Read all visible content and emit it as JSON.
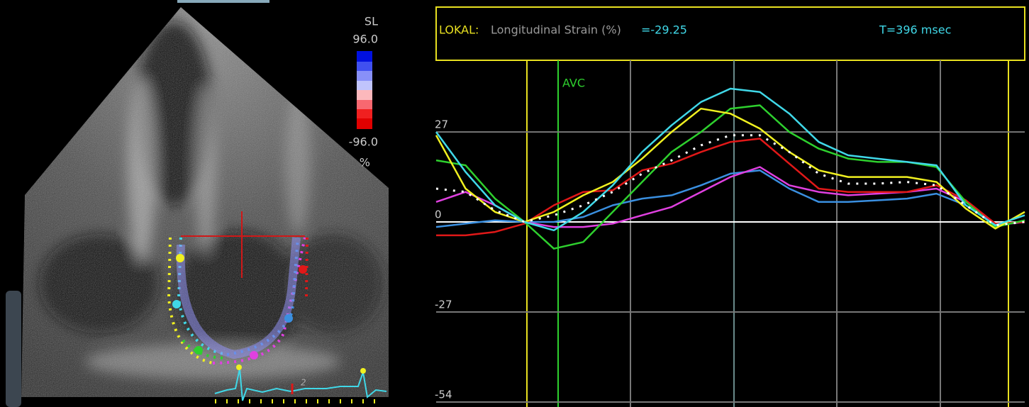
{
  "echo_panel": {
    "colorbar_title": "SL",
    "colorbar_max": "96.0",
    "colorbar_min": "-96.0",
    "colorbar_unit": "%",
    "ecg_label": "2"
  },
  "chart_data": {
    "type": "line",
    "header": {
      "label": "LOKAL:",
      "measure": "Longitudinal Strain (%)",
      "value": "=-29.25",
      "time": "T=396 msec"
    },
    "annotation": "AVC",
    "x": [
      0,
      1,
      2,
      3,
      4,
      5,
      6,
      7,
      8,
      9,
      10,
      11,
      12,
      13,
      14,
      15,
      16,
      17,
      18,
      19,
      20
    ],
    "xlim": [
      0,
      20
    ],
    "ylim": [
      -55.5,
      48.5
    ],
    "yticks": [
      27,
      0,
      -27,
      -54
    ],
    "grid": true,
    "series": [
      {
        "color": "#3a8fe0",
        "values": [
          -1.5,
          -0.5,
          0.5,
          0,
          0,
          1.5,
          5,
          7,
          8,
          11,
          14.5,
          15.5,
          10,
          6,
          6,
          6.5,
          7,
          8.5,
          5,
          -0.5,
          0
        ]
      },
      {
        "color": "#e040e0",
        "values": [
          6,
          9,
          5,
          0,
          -1.5,
          -1.5,
          -0.5,
          2,
          4.5,
          9,
          13.5,
          16.5,
          11,
          9,
          8,
          8.5,
          9,
          10,
          6,
          -1,
          0
        ]
      },
      {
        "color": "#e01818",
        "values": [
          -4,
          -4,
          -3,
          -0.5,
          5,
          9,
          9.5,
          15.5,
          17.5,
          21,
          24,
          25,
          17.5,
          10,
          9,
          9,
          9,
          11,
          6.5,
          -0.5,
          0
        ]
      },
      {
        "color": "#2ed02e",
        "values": [
          18.5,
          17,
          7,
          0,
          -8,
          -6,
          3,
          12,
          21,
          27,
          34,
          35,
          27,
          22,
          19,
          18,
          18,
          16.5,
          6,
          -1.5,
          0.5
        ]
      },
      {
        "color": "#f0f020",
        "values": [
          26,
          10,
          3,
          0,
          3,
          8,
          12,
          19,
          27,
          34,
          32.5,
          28,
          21,
          15.5,
          13.5,
          13.5,
          13.5,
          12,
          4,
          -2,
          3
        ]
      },
      {
        "color": "#40d8e8",
        "values": [
          27,
          15,
          5,
          0,
          -2.5,
          3,
          11,
          21,
          29,
          36,
          40,
          39,
          32.5,
          24,
          20,
          19,
          18,
          17,
          5,
          -1,
          2
        ]
      },
      {
        "color": "#ffffff",
        "dashed": true,
        "values": [
          10,
          9,
          3.5,
          0,
          2,
          5,
          9,
          14.5,
          18.5,
          23,
          26,
          26,
          21,
          14.5,
          11.5,
          11.5,
          12,
          11,
          5,
          -1,
          0
        ]
      }
    ]
  }
}
